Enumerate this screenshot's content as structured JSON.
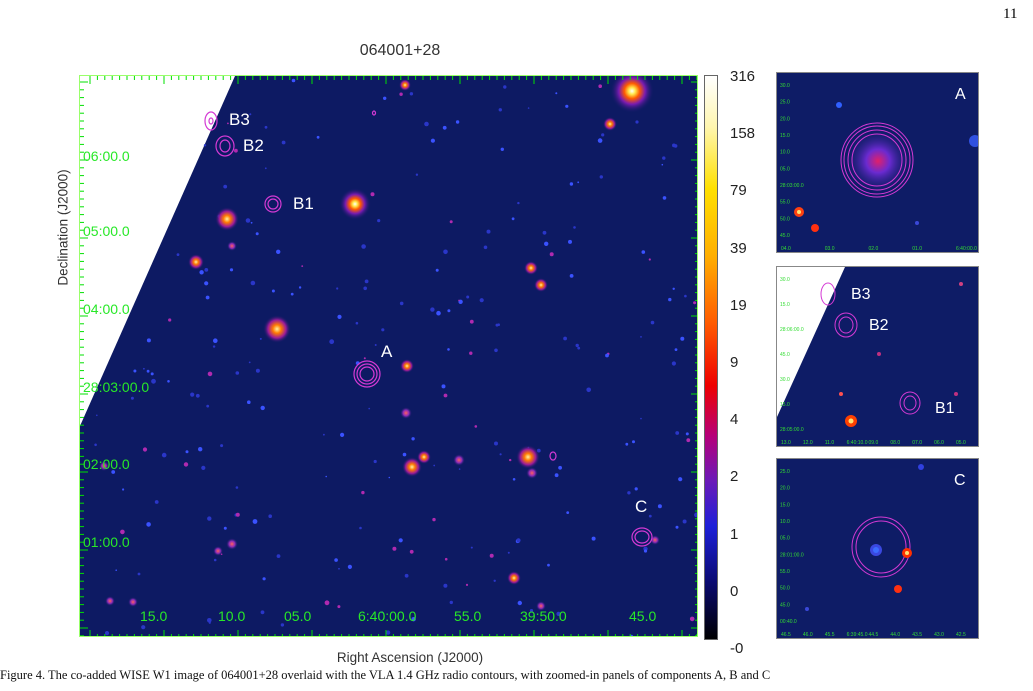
{
  "page_number": "11",
  "figure": {
    "title": "064001+28",
    "xlabel": "Right Ascension (J2000)",
    "ylabel": "Declination (J2000)",
    "ra_ticks": [
      "15.0",
      "10.0",
      "05.0",
      "6:40:00.0",
      "55.0",
      "39:50.0",
      "45.0"
    ],
    "dec_ticks": [
      "06:00.0",
      "05:00.0",
      "04:00.0",
      "28:03:00.0",
      "02:00.0",
      "01:00.0"
    ],
    "colorbar_ticks": [
      "316",
      "158",
      "79",
      "39",
      "19",
      "9",
      "4",
      "2",
      "1",
      "0",
      "-0"
    ],
    "source_labels": {
      "A": "A",
      "B1": "B1",
      "B2": "B2",
      "B3": "B3",
      "C": "C"
    },
    "colors": {
      "axis": "#00e000",
      "contour": "#d43ad4",
      "background": "#0d1a63"
    }
  },
  "insets": {
    "A": {
      "label": "A",
      "xticks": [
        "04.0",
        "03.0",
        "02.0",
        "01.0",
        "6:40:00.0"
      ],
      "yticks": [
        "30.0",
        "25.0",
        "20.0",
        "15.0",
        "10.0",
        "05.0",
        "28:03:00.0",
        "55.0",
        "50.0",
        "45.0"
      ]
    },
    "B": {
      "labels": [
        "B3",
        "B2",
        "B1"
      ],
      "xticks": [
        "13.0",
        "12.0",
        "11.0",
        "6:40:10.0",
        "09.0",
        "08.0",
        "07.0",
        "06.0",
        "05.0"
      ],
      "yticks": [
        "30.0",
        "15.0",
        "28:06:00.0",
        "45.0",
        "30.0",
        "15.0",
        "28:05:00.0"
      ]
    },
    "C": {
      "label": "C",
      "xticks": [
        "46.5",
        "46.0",
        "45.5",
        "6:39:45.0",
        "44.5",
        "44.0",
        "43.5",
        "43.0",
        "42.5"
      ],
      "yticks": [
        "25.0",
        "20.0",
        "15.0",
        "10.0",
        "05.0",
        "28:01:00.0",
        "55.0",
        "50.0",
        "45.0",
        "00:40.0"
      ]
    }
  },
  "caption": "Figure 4. The co-added WISE W1 image of 064001+28 overlaid with the VLA 1.4 GHz radio contours, with zoomed-in panels of components A, B and C"
}
